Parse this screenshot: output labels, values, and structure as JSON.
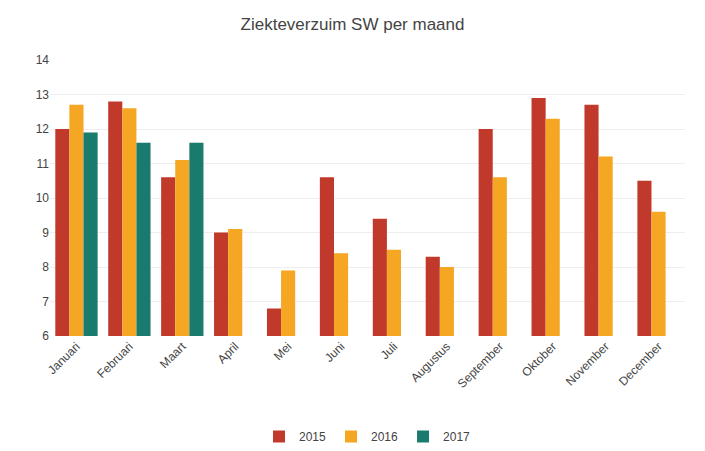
{
  "chart_data": {
    "type": "bar",
    "title": "Ziekteverzuim SW per maand",
    "categories": [
      "Januari",
      "Februari",
      "Maart",
      "April",
      "Mei",
      "Juni",
      "Juli",
      "Augustus",
      "September",
      "Oktober",
      "November",
      "December"
    ],
    "series": [
      {
        "name": "2015",
        "color": "#C0392B",
        "values": [
          12.0,
          12.8,
          10.6,
          9.0,
          6.8,
          10.6,
          9.4,
          8.3,
          12.0,
          12.9,
          12.7,
          10.5
        ]
      },
      {
        "name": "2016",
        "color": "#F5A623",
        "values": [
          12.7,
          12.6,
          11.1,
          9.1,
          7.9,
          8.4,
          8.5,
          8.0,
          10.6,
          12.3,
          11.2,
          9.6
        ]
      },
      {
        "name": "2017",
        "color": "#1A7A6E",
        "values": [
          11.9,
          11.6,
          11.6,
          null,
          null,
          null,
          null,
          null,
          null,
          null,
          null,
          null
        ]
      }
    ],
    "ylim": [
      6,
      14
    ],
    "yticks": [
      6,
      7,
      8,
      9,
      10,
      11,
      12,
      13,
      14
    ],
    "grid": true,
    "legend": "bottom"
  }
}
